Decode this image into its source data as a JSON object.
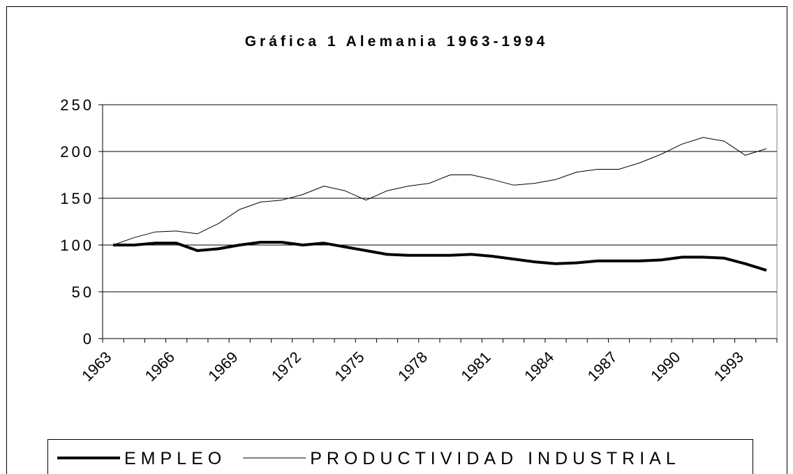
{
  "chart_data": {
    "type": "line",
    "title": "Gráfica 1 Alemania 1963-1994",
    "categories": [
      "1963",
      null,
      null,
      "1966",
      null,
      null,
      "1969",
      null,
      null,
      "1972",
      null,
      null,
      "1975",
      null,
      null,
      "1978",
      null,
      null,
      "1981",
      null,
      null,
      "1984",
      null,
      null,
      "1987",
      null,
      null,
      "1990",
      null,
      null,
      "1993",
      null
    ],
    "series": [
      {
        "name": "EMPLEO",
        "color": "#000000",
        "line_width": 4,
        "values": [
          100,
          100,
          102,
          102,
          94,
          96,
          100,
          103,
          103,
          100,
          102,
          98,
          94,
          90,
          89,
          89,
          89,
          90,
          88,
          85,
          82,
          80,
          81,
          83,
          83,
          83,
          84,
          87,
          87,
          86,
          80,
          73
        ]
      },
      {
        "name": "PRODUCTIVIDAD INDUSTRIAL",
        "color": "#000000",
        "line_width": 1,
        "values": [
          100,
          108,
          114,
          115,
          112,
          123,
          138,
          146,
          148,
          154,
          163,
          158,
          148,
          158,
          163,
          166,
          175,
          175,
          170,
          164,
          166,
          170,
          178,
          181,
          181,
          188,
          197,
          208,
          215,
          211,
          196,
          203
        ]
      }
    ],
    "ylim": [
      0,
      250
    ],
    "yticks": [
      0,
      50,
      100,
      150,
      200,
      250
    ],
    "grid": true,
    "legend": "bottom"
  }
}
